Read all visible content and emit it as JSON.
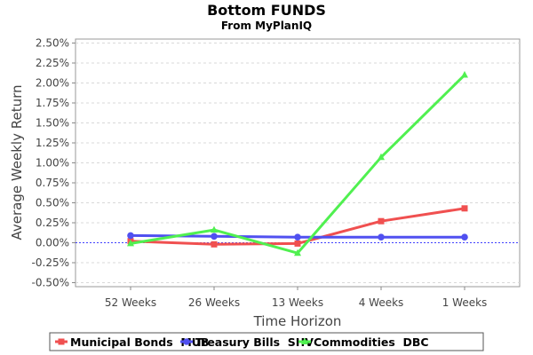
{
  "chart_data": {
    "type": "line",
    "title": "Bottom FUNDS",
    "subtitle": "From MyPlanIQ",
    "xlabel": "Time Horizon",
    "ylabel": "Average Weekly Return",
    "categories": [
      "52 Weeks",
      "26 Weeks",
      "13 Weeks",
      "4 Weeks",
      "1 Weeks"
    ],
    "ylim": [
      -0.55,
      2.55
    ],
    "yticks": [
      -0.5,
      -0.25,
      0.0,
      0.25,
      0.5,
      0.75,
      1.0,
      1.25,
      1.5,
      1.75,
      2.0,
      2.25,
      2.5
    ],
    "ytick_labels": [
      "-0.50%",
      "-0.25%",
      "0.00%",
      "0.25%",
      "0.50%",
      "0.75%",
      "1.00%",
      "1.25%",
      "1.50%",
      "1.75%",
      "2.00%",
      "2.25%",
      "2.50%"
    ],
    "grid": true,
    "legend_position": "bottom",
    "series": [
      {
        "name": "Municipal Bonds  MUB",
        "color": "#f05050",
        "marker": "square",
        "values": [
          0.02,
          -0.02,
          -0.01,
          0.27,
          0.43
        ]
      },
      {
        "name": "Treasury Bills  SHV",
        "color": "#5050f0",
        "marker": "circle",
        "values": [
          0.09,
          0.08,
          0.07,
          0.07,
          0.07
        ]
      },
      {
        "name": "Commodities  DBC",
        "color": "#50f050",
        "marker": "triangle",
        "values": [
          -0.01,
          0.16,
          -0.13,
          1.07,
          2.1
        ]
      }
    ]
  }
}
